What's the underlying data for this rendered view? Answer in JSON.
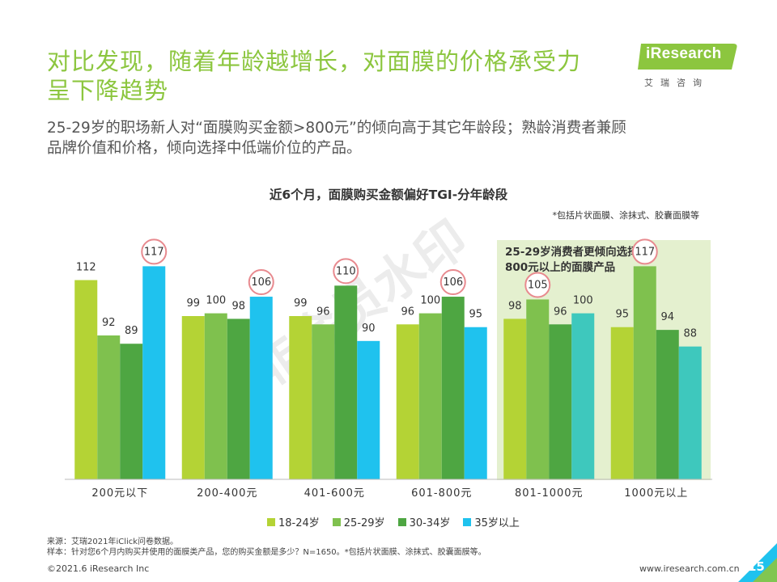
{
  "header": {
    "title_lines": [
      "对比发现，随着年龄越增长，对面膜的价格承受力",
      "呈下降趋势"
    ],
    "subtitle_lines": [
      "25-29岁的职场新人对“面膜购买金额>800元”的倾向高于其它年龄段；熟龄消费者兼顾",
      "品牌价值和价格，倾向选择中低端价位的产品。"
    ]
  },
  "logo": {
    "text": "iResearch",
    "cn": "艾瑞咨询",
    "color": "#8cc63f"
  },
  "watermark": "非会员水印",
  "chart_data": {
    "type": "bar",
    "title": "近6个月，面膜购买金额偏好TGI-分年龄段",
    "note": "*包括片状面膜、涂抹式、胶囊面膜等",
    "categories": [
      "200元以下",
      "200-400元",
      "401-600元",
      "601-800元",
      "801-1000元",
      "1000元以上"
    ],
    "series": [
      {
        "name": "18-24岁",
        "color": "#b4d335",
        "values": [
          112,
          99,
          99,
          96,
          98,
          95
        ]
      },
      {
        "name": "25-29岁",
        "color": "#7fc14e",
        "values": [
          92,
          100,
          96,
          100,
          105,
          117
        ]
      },
      {
        "name": "30-34岁",
        "color": "#4ea642",
        "values": [
          89,
          98,
          110,
          106,
          96,
          94
        ]
      },
      {
        "name": "35岁以上",
        "color": "#1fc2ee",
        "values": [
          117,
          106,
          90,
          95,
          100,
          88
        ]
      }
    ],
    "ylim": [
      40,
      125
    ],
    "highlight_label_lines": [
      "25-29岁消费者更倾向选择",
      "800元以上的面膜产品"
    ],
    "circled": [
      {
        "category": 0,
        "series": 3
      },
      {
        "category": 1,
        "series": 3
      },
      {
        "category": 2,
        "series": 2
      },
      {
        "category": 3,
        "series": 2
      },
      {
        "category": 4,
        "series": 1
      },
      {
        "category": 5,
        "series": 1
      }
    ],
    "teal_override": {
      "from_category": 4,
      "series": 3,
      "color": "#3ec8bd"
    }
  },
  "source_lines": [
    "来源：艾瑞2021年iClick问卷数据。",
    "样本：针对您6个月内购买并使用的面膜类产品，您的购买金额是多少？N=1650。*包括片状面膜、涂抹式、胶囊面膜等。"
  ],
  "footer": {
    "copyright": "©2021.6 iResearch Inc",
    "url": "www.iresearch.com.cn",
    "page": "15"
  }
}
